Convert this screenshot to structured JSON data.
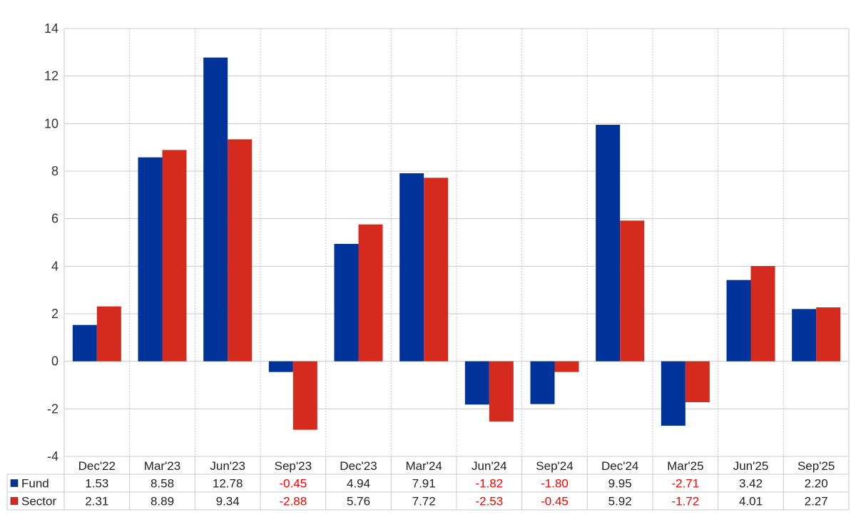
{
  "chart_data": {
    "type": "bar",
    "categories": [
      "Dec'22",
      "Mar'23",
      "Jun'23",
      "Sep'23",
      "Dec'23",
      "Mar'24",
      "Jun'24",
      "Sep'24",
      "Dec'24",
      "Mar'25",
      "Jun'25",
      "Sep'25"
    ],
    "series": [
      {
        "name": "Fund",
        "color": "#003399",
        "values": [
          1.53,
          8.58,
          12.78,
          -0.45,
          4.94,
          7.91,
          -1.82,
          -1.8,
          9.95,
          -2.71,
          3.42,
          2.2
        ],
        "labels": [
          "1.53",
          "8.58",
          "12.78",
          "-0.45",
          "4.94",
          "7.91",
          "-1.82",
          "-1.80",
          "9.95",
          "-2.71",
          "3.42",
          "2.20"
        ]
      },
      {
        "name": "Sector",
        "color": "#d52b1e",
        "values": [
          2.31,
          8.89,
          9.34,
          -2.88,
          5.76,
          7.72,
          -2.53,
          -0.45,
          5.92,
          -1.72,
          4.01,
          2.27
        ],
        "labels": [
          "2.31",
          "8.89",
          "9.34",
          "-2.88",
          "5.76",
          "7.72",
          "-2.53",
          "-0.45",
          "5.92",
          "-1.72",
          "4.01",
          "2.27"
        ]
      }
    ],
    "ylim": [
      -4,
      14
    ],
    "yticks": [
      "-4",
      "-2",
      "0",
      "2",
      "4",
      "6",
      "8",
      "10",
      "12",
      "14"
    ],
    "grid": true,
    "legend": "table-below",
    "negative_label_color": "#ff0000",
    "title": "",
    "xlabel": "",
    "ylabel": ""
  }
}
